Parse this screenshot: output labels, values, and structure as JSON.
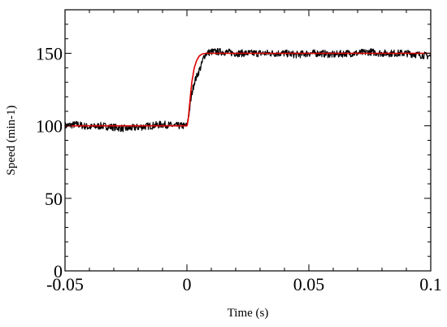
{
  "chart_data": {
    "type": "line",
    "title": "",
    "xlabel": "Time (s)",
    "ylabel": "Speed (min-1)",
    "xlim": [
      -0.05,
      0.1
    ],
    "ylim": [
      0,
      180
    ],
    "x_ticks": [
      -0.05,
      0,
      0.05,
      0.1
    ],
    "x_tick_labels": [
      "-0.05",
      "0",
      "0.05",
      "0.1"
    ],
    "y_ticks": [
      0,
      50,
      100,
      150
    ],
    "y_tick_labels": [
      "0",
      "50",
      "100",
      "150"
    ],
    "grid": false,
    "legend": "none",
    "series": [
      {
        "color": "#000000",
        "style": "noisy-measured",
        "x": [
          -0.05,
          -0.045,
          -0.04,
          -0.035,
          -0.03,
          -0.025,
          -0.02,
          -0.015,
          -0.01,
          -0.005,
          0.0,
          0.001,
          0.002,
          0.003,
          0.004,
          0.005,
          0.006,
          0.007,
          0.008,
          0.01,
          0.015,
          0.02,
          0.025,
          0.03,
          0.035,
          0.04,
          0.045,
          0.05,
          0.055,
          0.06,
          0.065,
          0.07,
          0.075,
          0.08,
          0.085,
          0.09,
          0.095,
          0.1
        ],
        "y": [
          100,
          101,
          99,
          100,
          99,
          98,
          99,
          100,
          101,
          100,
          100,
          110,
          122,
          130,
          134,
          138,
          142,
          148,
          150,
          151,
          151,
          150,
          150,
          150,
          150,
          150,
          149,
          150,
          150,
          149,
          150,
          150,
          151,
          150,
          150,
          150,
          149,
          148
        ]
      },
      {
        "color": "#e00000",
        "style": "model",
        "x": [
          -0.05,
          -0.02,
          0.0,
          0.0005,
          0.001,
          0.0015,
          0.002,
          0.003,
          0.004,
          0.005,
          0.006,
          0.007,
          0.008,
          0.01,
          0.02,
          0.05,
          0.1
        ],
        "y": [
          100,
          100,
          100,
          104,
          113,
          122,
          130,
          140,
          145,
          148,
          149.3,
          149.8,
          150,
          150,
          150,
          150,
          150
        ]
      }
    ]
  }
}
